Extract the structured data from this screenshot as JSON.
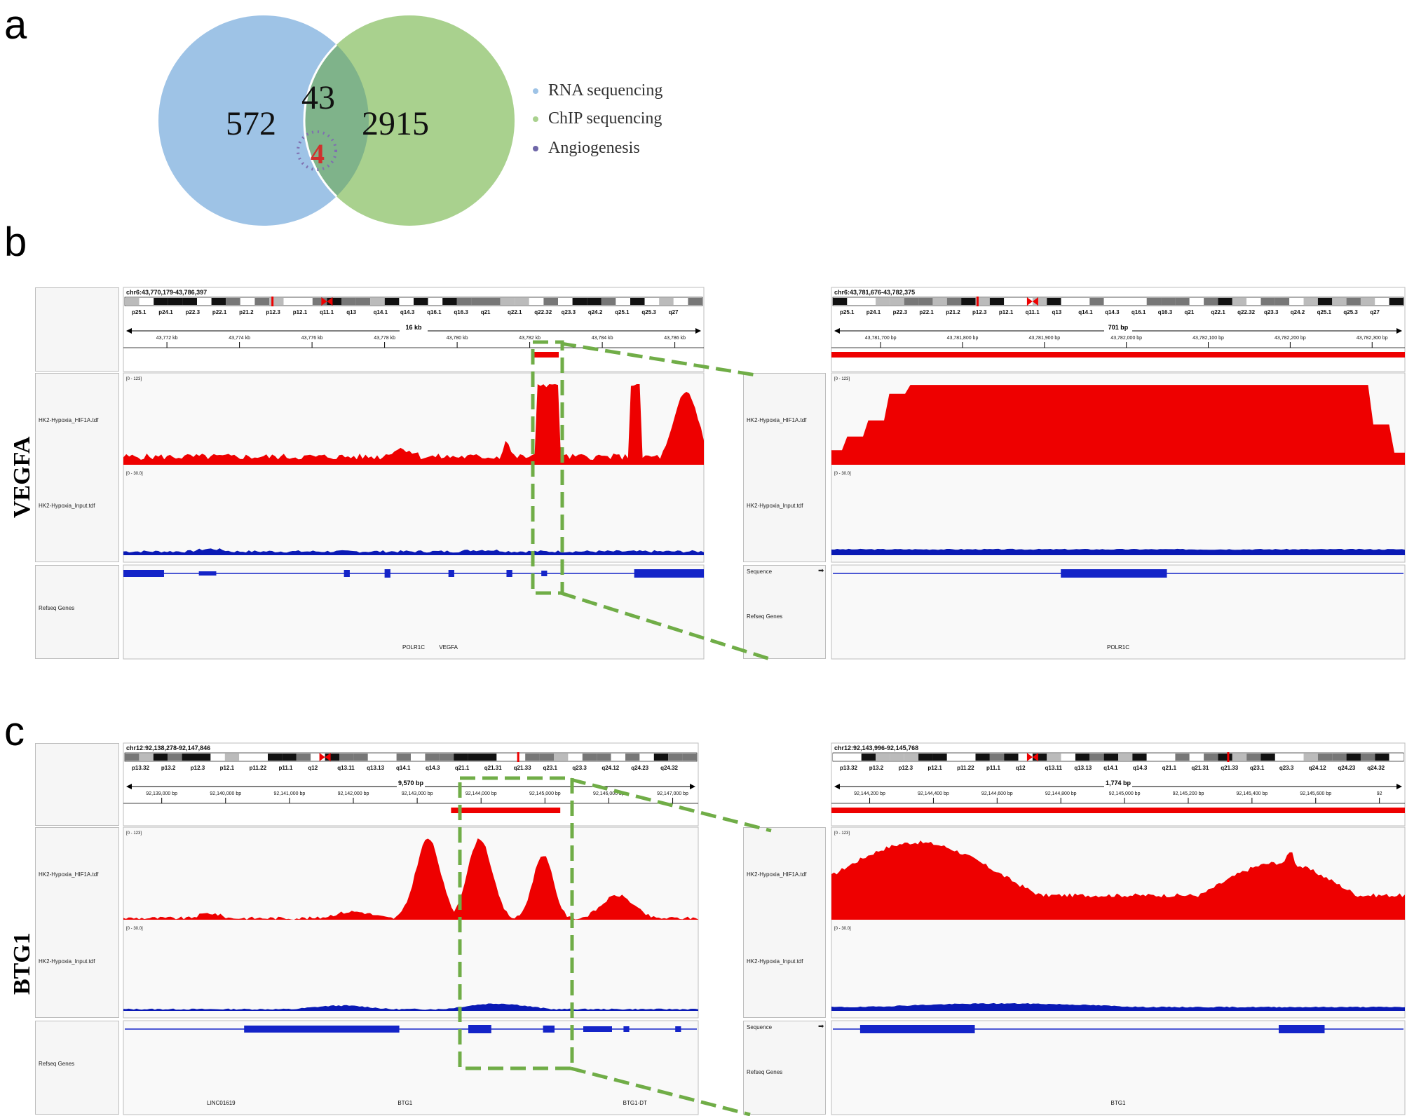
{
  "panels": {
    "a": "a",
    "b": "b",
    "c": "c"
  },
  "venn": {
    "left_only": "572",
    "overlap": "43",
    "right_only": "2915",
    "angiogenesis": "4",
    "colors": {
      "rna": "#9ec3e6",
      "chip": "#a9d18e",
      "angio": "#7f6fb0",
      "angio_text": "#d0312d"
    }
  },
  "legend": [
    {
      "label": "RNA sequencing",
      "color": "#9ec3e6"
    },
    {
      "label": "ChIP sequencing",
      "color": "#a9d18e"
    },
    {
      "label": "Angiogenesis",
      "color": "#6e66a8"
    }
  ],
  "genes": {
    "vegfa": "VEGFA",
    "btg1": "BTG1"
  },
  "tracks": {
    "hif1a": "HK2-Hypoxia_HIF1A.tdf",
    "input": "HK2-Hypoxia_Input.tdf",
    "refseq": "Refseq Genes",
    "sequence": "Sequence",
    "range_hif1a": "[0 - 123]",
    "range_input": "[0 - 30.0]"
  },
  "chr6_bands": [
    "p25.1",
    "p24.1",
    "p22.3",
    "p22.1",
    "p21.2",
    "p12.3",
    "p12.1",
    "q11.1",
    "q13",
    "q14.1",
    "q14.3",
    "q16.1",
    "q16.3",
    "q21",
    "q22.1",
    "q22.32",
    "q23.3",
    "q24.2",
    "q25.1",
    "q25.3",
    "q27"
  ],
  "chr12_bands": [
    "p13.32",
    "p13.2",
    "p12.3",
    "p12.1",
    "p11.22",
    "p11.1",
    "q12",
    "q13.11",
    "q13.13",
    "q14.1",
    "q14.3",
    "q21.1",
    "q21.31",
    "q21.33",
    "q23.1",
    "q23.3",
    "q24.12",
    "q24.23",
    "q24.32"
  ],
  "vegfa_left": {
    "locus": "chr6:43,770,179-43,786,397",
    "span": "16 kb",
    "ticks": [
      "43,772 kb",
      "43,774 kb",
      "43,776 kb",
      "43,778 kb",
      "43,780 kb",
      "43,782 kb",
      "43,784 kb",
      "43,786 kb"
    ],
    "genes": [
      "POLR1C",
      "VEGFA"
    ]
  },
  "vegfa_right": {
    "locus": "chr6:43,781,676-43,782,375",
    "span": "701 bp",
    "ticks": [
      "43,781,700 bp",
      "43,781,800 bp",
      "43,781,900 bp",
      "43,782,000 bp",
      "43,782,100 bp",
      "43,782,200 bp",
      "43,782,300 bp"
    ],
    "genes": [
      "POLR1C"
    ]
  },
  "btg1_left": {
    "locus": "chr12:92,138,278-92,147,846",
    "span": "9,570 bp",
    "ticks": [
      "92,139,000 bp",
      "92,140,000 bp",
      "92,141,000 bp",
      "92,142,000 bp",
      "92,143,000 bp",
      "92,144,000 bp",
      "92,145,000 bp",
      "92,146,000 bp",
      "92,147,000 bp"
    ],
    "genes": [
      "LINC01619",
      "BTG1",
      "BTG1-DT"
    ]
  },
  "btg1_right": {
    "locus": "chr12:92,143,996-92,145,768",
    "span": "1,774 bp",
    "ticks": [
      "92,144,200 bp",
      "92,144,400 bp",
      "92,144,600 bp",
      "92,144,800 bp",
      "92,145,000 bp",
      "92,145,200 bp",
      "92,145,400 bp",
      "92,145,600 bp",
      "92"
    ],
    "genes": [
      "BTG1"
    ]
  },
  "colors": {
    "chip": "#ee0000",
    "input": "#0a1ab5",
    "gene": "#1424c8",
    "zoom": "#70ad47"
  }
}
